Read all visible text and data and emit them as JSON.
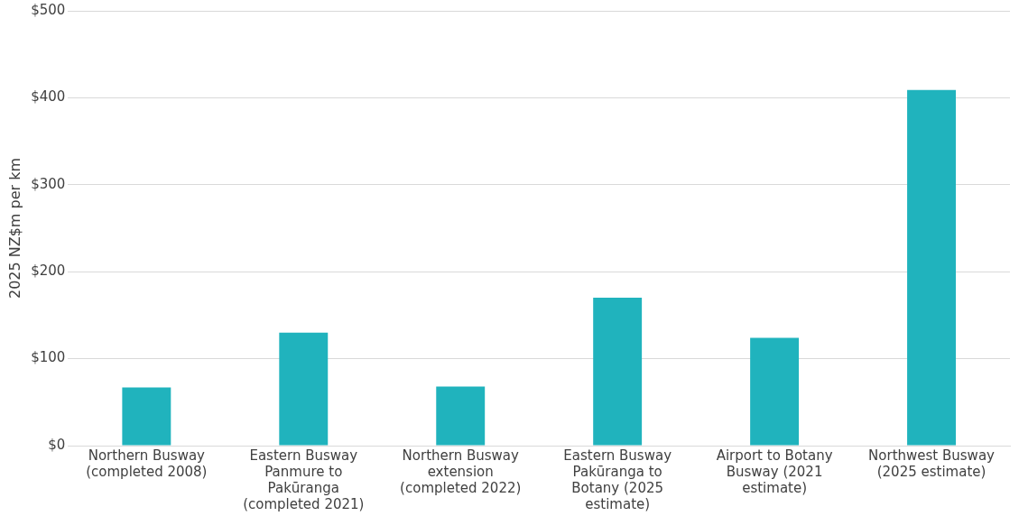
{
  "chart_data": {
    "type": "bar",
    "ylabel": "2025 NZ$m per km",
    "categories": [
      "Northern Busway (completed 2008)",
      "Eastern Busway Panmure to Pakūranga (completed 2021)",
      "Northern Busway extension (completed 2022)",
      "Eastern Busway Pakūranga to Botany (2025 estimate)",
      "Airport to Botany Busway (2021 estimate)",
      "Northwest Busway (2025 estimate)"
    ],
    "values": [
      67,
      130,
      68,
      170,
      124,
      409
    ],
    "color": "#20b3bd",
    "ylim": [
      0,
      500
    ],
    "yticks": [
      {
        "value": 0,
        "label": "$0"
      },
      {
        "value": 100,
        "label": "$100"
      },
      {
        "value": 200,
        "label": "$200"
      },
      {
        "value": 300,
        "label": "$300"
      },
      {
        "value": 400,
        "label": "$400"
      },
      {
        "value": 500,
        "label": "$500"
      }
    ],
    "grid": "y",
    "legend": false
  }
}
